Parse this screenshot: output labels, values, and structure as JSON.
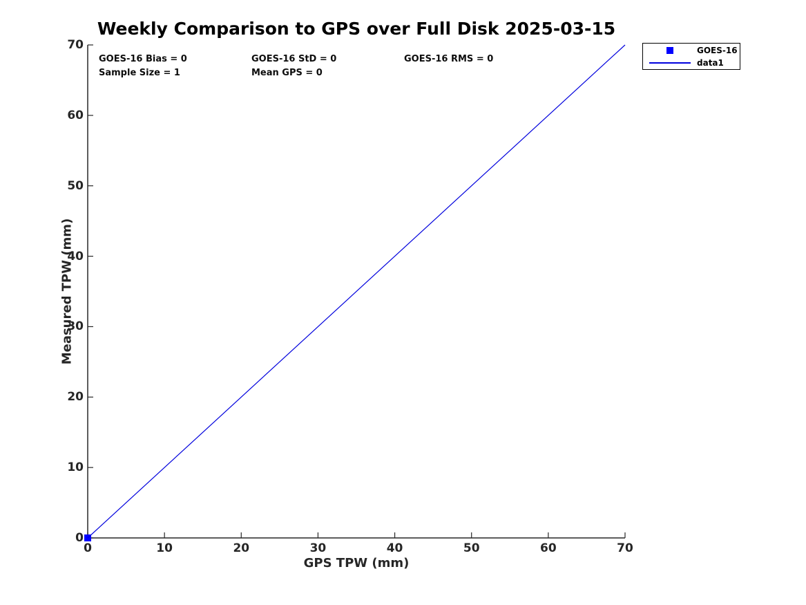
{
  "chart_data": {
    "type": "line",
    "title": "Weekly Comparison to GPS over Full Disk 2025-03-15",
    "xlabel": "GPS TPW (mm)",
    "ylabel": "Measured TPW (mm)",
    "xlim": [
      0,
      70
    ],
    "ylim": [
      0,
      70
    ],
    "xticks": [
      0,
      10,
      20,
      30,
      40,
      50,
      60,
      70
    ],
    "yticks": [
      0,
      10,
      20,
      30,
      40,
      50,
      60,
      70
    ],
    "grid": false,
    "legend_position": "outside-top-right",
    "series": [
      {
        "name": "GOES-16",
        "type": "scatter",
        "marker": "filled-square",
        "color": "#0000FF",
        "points": [
          [
            0,
            0
          ]
        ]
      },
      {
        "name": "data1",
        "type": "line",
        "color": "#0000DD",
        "points": [
          [
            0,
            0
          ],
          [
            70,
            70
          ]
        ]
      }
    ]
  },
  "annotations": [
    {
      "text": "GOES-16 Bias = 0"
    },
    {
      "text": "GOES-16 StD = 0"
    },
    {
      "text": "GOES-16 RMS = 0"
    },
    {
      "text": "Sample Size = 1"
    },
    {
      "text": "Mean GPS = 0"
    }
  ],
  "legend": {
    "entries": [
      {
        "label": "GOES-16",
        "symbol": "filled-square-marker",
        "color": "#0000FF"
      },
      {
        "label": "data1",
        "symbol": "line",
        "color": "#0000DD"
      }
    ]
  },
  "colors": {
    "axis": "#262626",
    "text": "#000000",
    "background": "#FFFFFF"
  }
}
